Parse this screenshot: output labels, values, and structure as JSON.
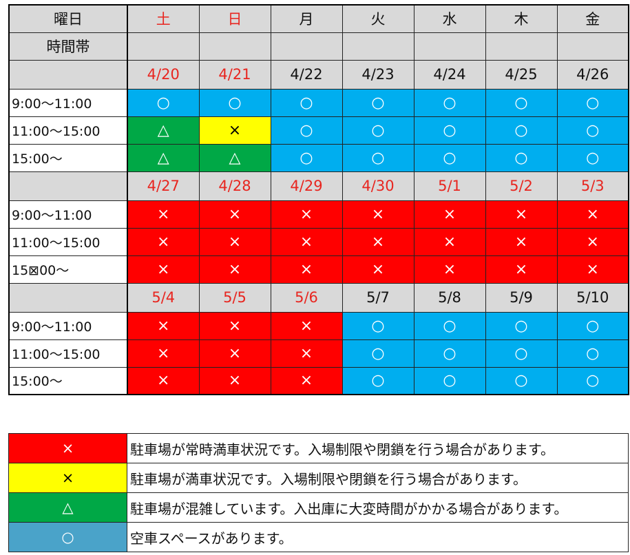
{
  "header": {
    "weekday_label": "曜日",
    "timeslot_label": "時間帯",
    "days": [
      {
        "name": "土",
        "color": "red"
      },
      {
        "name": "日",
        "color": "red"
      },
      {
        "name": "月",
        "color": "black"
      },
      {
        "name": "火",
        "color": "black"
      },
      {
        "name": "水",
        "color": "black"
      },
      {
        "name": "木",
        "color": "black"
      },
      {
        "name": "金",
        "color": "black"
      }
    ]
  },
  "weeks": [
    {
      "dates": [
        {
          "text": "4/20",
          "color": "red"
        },
        {
          "text": "4/21",
          "color": "red"
        },
        {
          "text": "4/22",
          "color": "black"
        },
        {
          "text": "4/23",
          "color": "black"
        },
        {
          "text": "4/24",
          "color": "black"
        },
        {
          "text": "4/25",
          "color": "black"
        },
        {
          "text": "4/26",
          "color": "black"
        }
      ],
      "rows": [
        {
          "slot": "9:00〜11:00",
          "cells": [
            "open",
            "open",
            "open",
            "open",
            "open",
            "open",
            "open"
          ]
        },
        {
          "slot": "11:00〜15:00",
          "cells": [
            "crowd",
            "busy",
            "open",
            "open",
            "open",
            "open",
            "open"
          ]
        },
        {
          "slot": "15:00〜",
          "cells": [
            "crowd",
            "crowd",
            "open",
            "open",
            "open",
            "open",
            "open"
          ]
        }
      ]
    },
    {
      "dates": [
        {
          "text": "4/27",
          "color": "red"
        },
        {
          "text": "4/28",
          "color": "red"
        },
        {
          "text": "4/29",
          "color": "red"
        },
        {
          "text": "4/30",
          "color": "red"
        },
        {
          "text": "5/1",
          "color": "red"
        },
        {
          "text": "5/2",
          "color": "red"
        },
        {
          "text": "5/3",
          "color": "red"
        }
      ],
      "rows": [
        {
          "slot": "9:00〜11:00",
          "cells": [
            "full",
            "full",
            "full",
            "full",
            "full",
            "full",
            "full"
          ]
        },
        {
          "slot": "11:00〜15:00",
          "cells": [
            "full",
            "full",
            "full",
            "full",
            "full",
            "full",
            "full"
          ]
        },
        {
          "slot": "15⊠00〜",
          "cells": [
            "full",
            "full",
            "full",
            "full",
            "full",
            "full",
            "full"
          ]
        }
      ]
    },
    {
      "dates": [
        {
          "text": "5/4",
          "color": "red"
        },
        {
          "text": "5/5",
          "color": "red"
        },
        {
          "text": "5/6",
          "color": "red"
        },
        {
          "text": "5/7",
          "color": "black"
        },
        {
          "text": "5/8",
          "color": "black"
        },
        {
          "text": "5/9",
          "color": "black"
        },
        {
          "text": "5/10",
          "color": "black"
        }
      ],
      "rows": [
        {
          "slot": "9:00〜11:00",
          "cells": [
            "full",
            "full",
            "full",
            "open",
            "open",
            "open",
            "open"
          ]
        },
        {
          "slot": "11:00〜15:00",
          "cells": [
            "full",
            "full",
            "full",
            "open",
            "open",
            "open",
            "open"
          ]
        },
        {
          "slot": "15:00〜",
          "cells": [
            "full",
            "full",
            "full",
            "open",
            "open",
            "open",
            "open"
          ]
        }
      ]
    }
  ],
  "status_marks": {
    "full": "×",
    "busy": "×",
    "crowd": "△",
    "open": "○"
  },
  "colors": {
    "full": "#ff0000",
    "busy": "#ffff00",
    "crowd": "#00a846",
    "open": "#00aeef",
    "legend_open": "#4aa3c9",
    "holiday_text": "#e8251f",
    "header_gray": "#d9d9d9"
  },
  "legend": [
    {
      "status": "full",
      "mark": "×",
      "text": "駐車場が常時満車状況です。入場制限や閉鎖を行う場合があります。"
    },
    {
      "status": "busy",
      "mark": "×",
      "text": "駐車場が満車状況です。入場制限や閉鎖を行う場合があります。"
    },
    {
      "status": "crowd",
      "mark": "△",
      "text": "駐車場が混雑しています。入出庫に大変時間がかかる場合があります。"
    },
    {
      "status": "open",
      "mark": "○",
      "text": "空車スペースがあります。"
    }
  ]
}
